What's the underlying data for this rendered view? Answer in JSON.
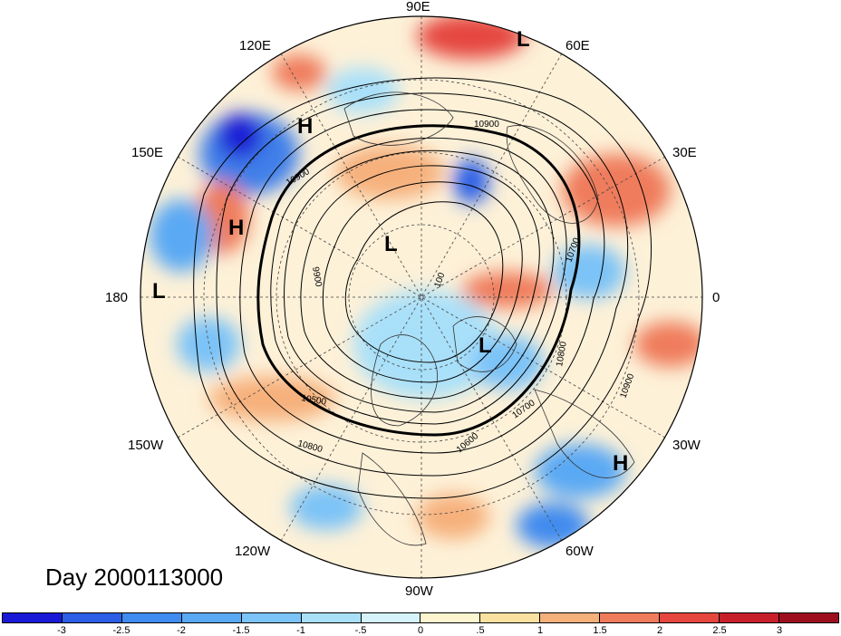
{
  "title": "Day 2000113000",
  "longitude_labels": [
    "90E",
    "60E",
    "30E",
    "0",
    "30W",
    "60W",
    "90W",
    "120W",
    "150W",
    "180",
    "150E",
    "120E"
  ],
  "pressure_systems": [
    {
      "type": "L"
    },
    {
      "type": "H"
    },
    {
      "type": "H"
    },
    {
      "type": "L"
    },
    {
      "type": "L"
    },
    {
      "type": "L"
    },
    {
      "type": "H"
    }
  ],
  "contour_labels": [
    "10900",
    "10900",
    "9900",
    "100",
    "10700",
    "10800",
    "10900",
    "10500",
    "10800",
    "10700",
    "10600"
  ],
  "colorbar": {
    "ticks": [
      "-3",
      "-2.5",
      "-2",
      "-1.5",
      "-1",
      "-.5",
      "0",
      ".5",
      "1",
      "1.5",
      "2",
      "2.5",
      "3"
    ],
    "colors": [
      "#1a1ad6",
      "#2c5fe6",
      "#3f8bef",
      "#5aa9f4",
      "#7cc3f7",
      "#a9e0f9",
      "#d6f2fb",
      "#fdf5cf",
      "#fbe1a0",
      "#f6b07c",
      "#ef7c5c",
      "#e5473f",
      "#c8202a",
      "#9c0f1e"
    ]
  }
}
